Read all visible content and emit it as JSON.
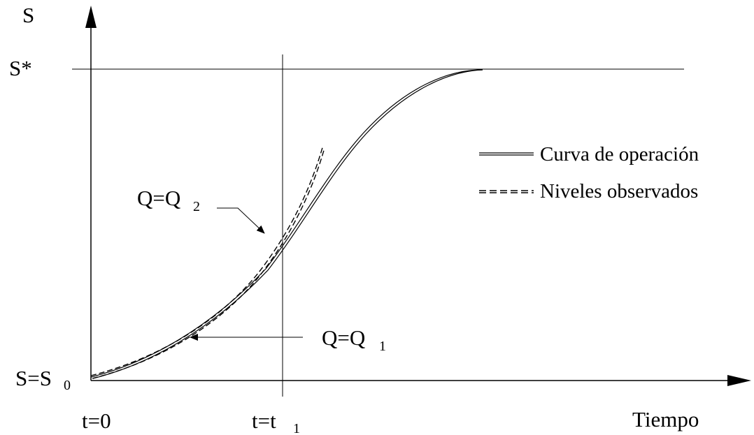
{
  "labels": {
    "y_axis": "S",
    "s_star": "S*",
    "s0_main": "S=S",
    "s0_sub": "0",
    "t0": "t=0",
    "t1_main": "t=t",
    "t1_sub": "1",
    "x_axis": "Tiempo",
    "q2_main": "Q=Q",
    "q2_sub": "2",
    "q1_main": "Q=Q",
    "q1_sub": "1"
  },
  "legend": {
    "operation": "Curva de operación",
    "observed": "Niveles observados"
  }
}
